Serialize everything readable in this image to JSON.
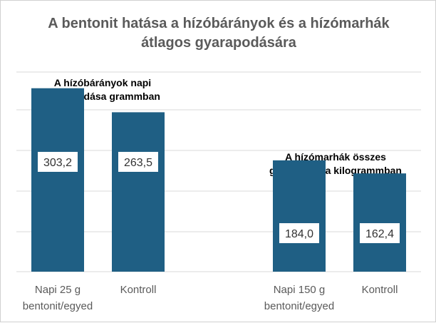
{
  "chart_data": {
    "type": "bar",
    "title": [
      "A bentonit hatása a hízóbárányok és a hízómarhák",
      "átlagos gyarapodására"
    ],
    "grid": true,
    "legend": "none",
    "colors": {
      "bar": "#1f5f84",
      "grid": "#d9d9d9",
      "label_box": "#ffffff"
    },
    "groups": [
      {
        "annotation": [
          "A hízóbárányok napi",
          "gyarapodása grammban"
        ],
        "categories": [
          [
            "Napi 25 g",
            "bentonit/egyed"
          ],
          [
            "Kontroll"
          ]
        ],
        "values": [
          303.2,
          263.5
        ],
        "value_labels": [
          "303,2",
          "263,5"
        ],
        "ylim": [
          0,
          330
        ]
      },
      {
        "annotation": [
          "A hízómarhák összes",
          "gyarapodása kilogrammban"
        ],
        "categories": [
          [
            "Napi 150 g",
            "bentonit/egyed"
          ],
          [
            "Kontroll"
          ]
        ],
        "values": [
          184.0,
          162.4
        ],
        "value_labels": [
          "184,0",
          "162,4"
        ],
        "ylim": [
          0,
          330
        ]
      }
    ]
  }
}
